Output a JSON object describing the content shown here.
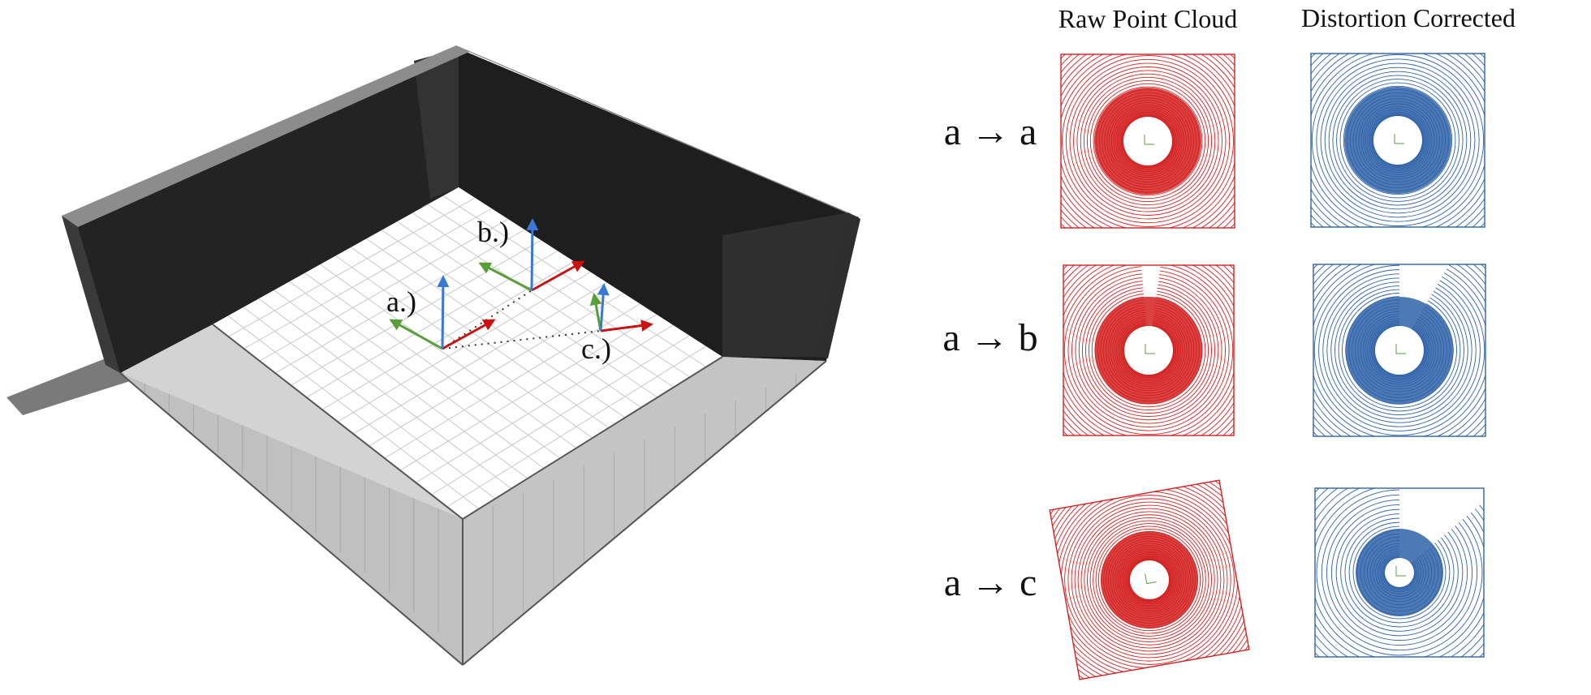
{
  "scene": {
    "pose_labels": [
      "a.)",
      "b.)",
      "c.)"
    ],
    "colors": {
      "wall_dark": "#222222",
      "wall_top": "#8c8c8c",
      "floor": "#ffffff",
      "grid": "#c8c8c8",
      "axis_x": "#cc1111",
      "axis_y": "#5a9e3a",
      "axis_z": "#3a78d6"
    }
  },
  "panels": {
    "column_headers": [
      "Raw Point Cloud",
      "Distortion Corrected"
    ],
    "rows": [
      {
        "label": "a → a"
      },
      {
        "label": "a → b"
      },
      {
        "label": "a → c"
      }
    ],
    "colors": {
      "raw": "#d42020",
      "corrected": "#2e62a8"
    }
  }
}
